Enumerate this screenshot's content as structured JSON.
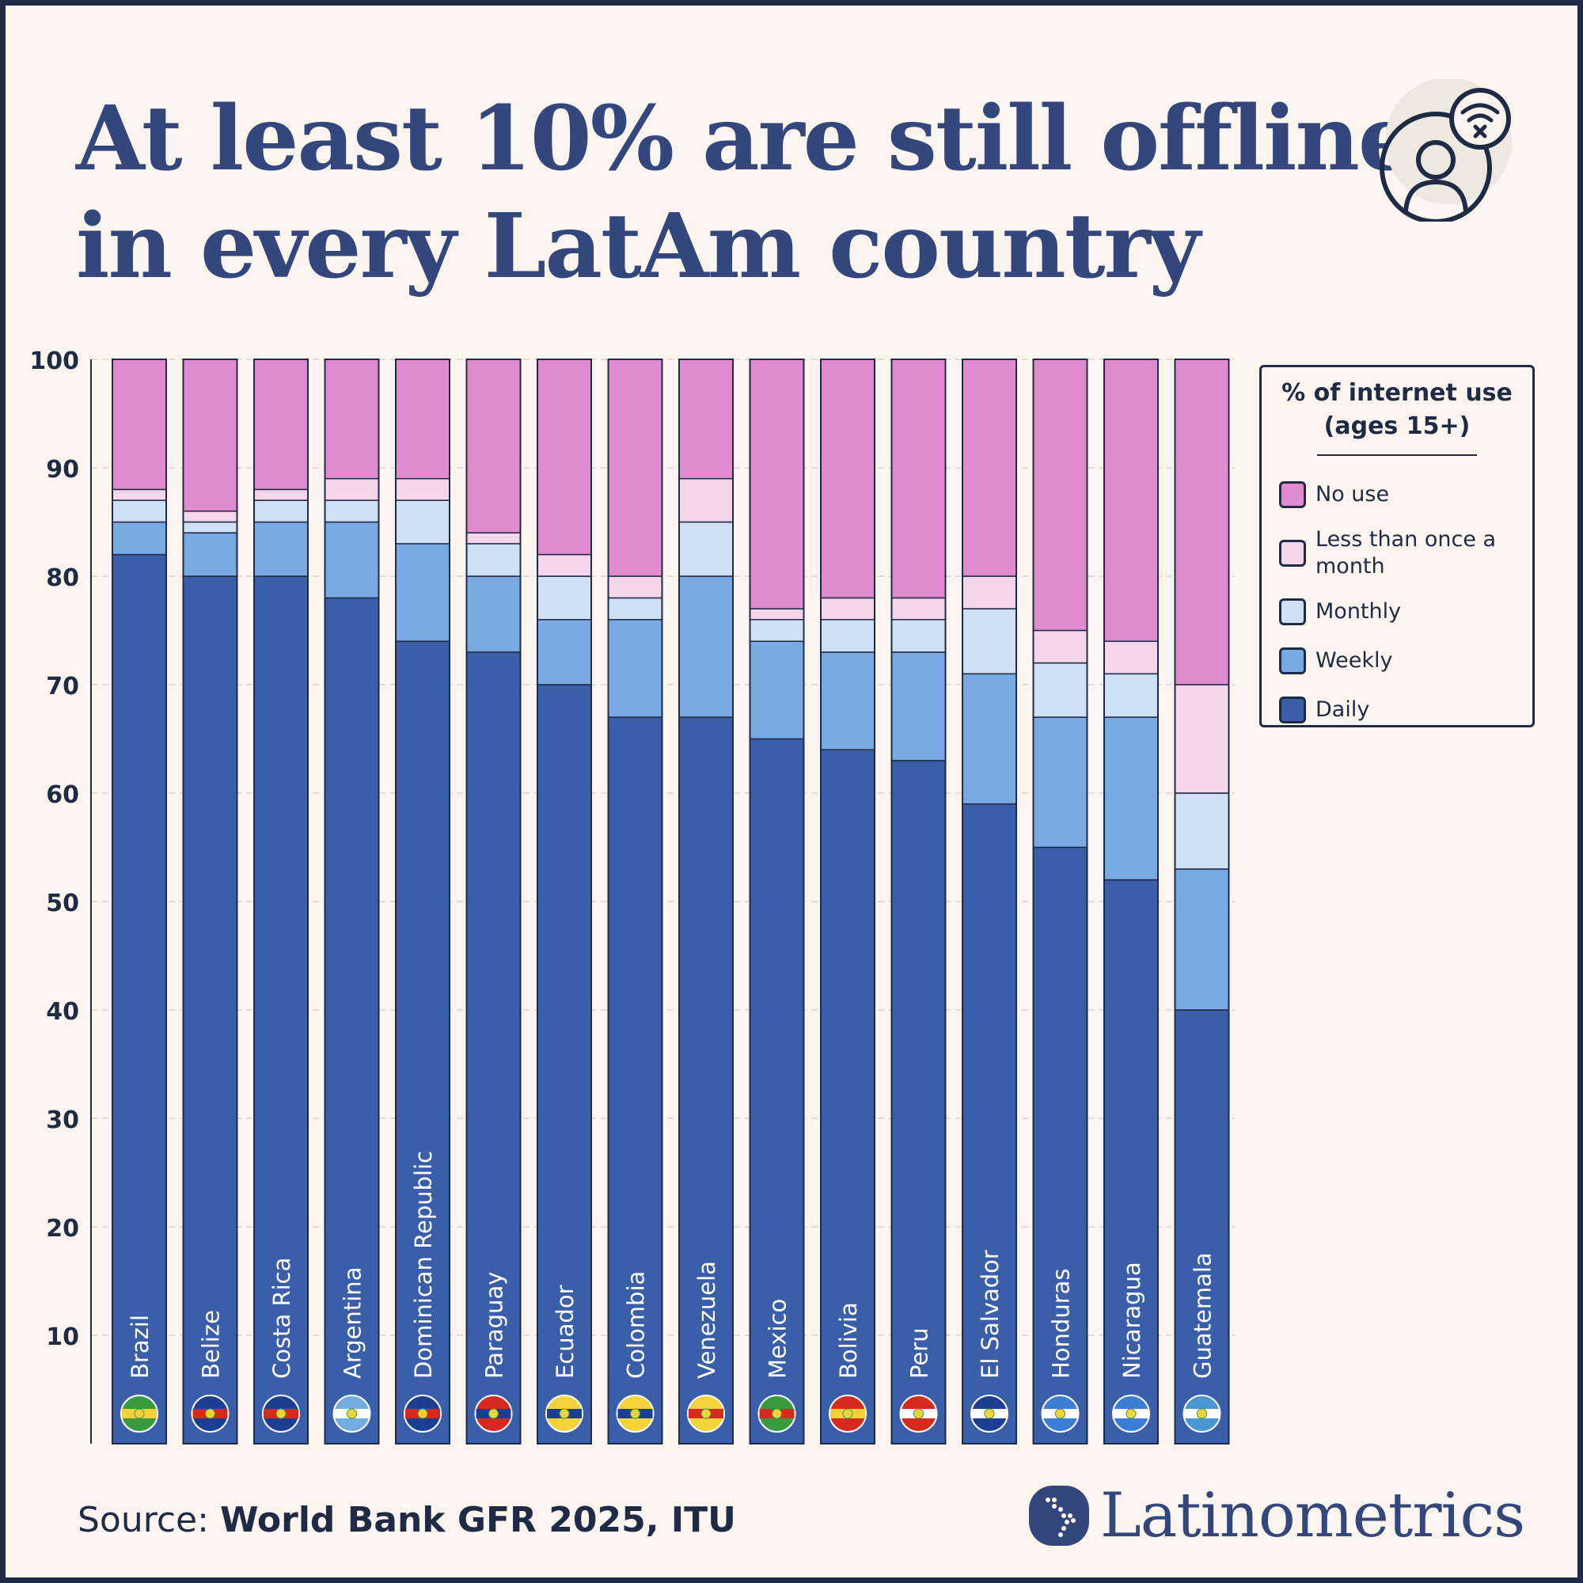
{
  "title": {
    "line1": "At least 10% are still offline",
    "line2": "in every LatAm country"
  },
  "icon": "offline-user-wifi-x-icon",
  "legend": {
    "title_line1": "% of internet use",
    "title_line2": "(ages 15+)",
    "items": [
      {
        "label": "No use",
        "color": "#e08bcf"
      },
      {
        "label": "Less than once a month",
        "color": "#f5d5ec"
      },
      {
        "label": "Monthly",
        "color": "#cfdff4"
      },
      {
        "label": "Weekly",
        "color": "#79a9e2"
      },
      {
        "label": "Daily",
        "color": "#3a5fa8"
      }
    ]
  },
  "source": {
    "prefix": "Source: ",
    "text": "World Bank GFR 2025, ITU"
  },
  "brand": "Latinometrics",
  "chart_data": {
    "type": "bar",
    "stacked": true,
    "title": "",
    "xlabel": "",
    "ylabel": "",
    "ylim": [
      0,
      100
    ],
    "yticks": [
      10,
      20,
      30,
      40,
      50,
      60,
      70,
      80,
      90,
      100
    ],
    "grid": true,
    "legend_position": "right",
    "categories": [
      "Brazil",
      "Belize",
      "Costa Rica",
      "Argentina",
      "Dominican Republic",
      "Paraguay",
      "Ecuador",
      "Colombia",
      "Venezuela",
      "Mexico",
      "Bolivia",
      "Peru",
      "El Salvador",
      "Honduras",
      "Nicaragua",
      "Guatemala"
    ],
    "series": [
      {
        "name": "Daily",
        "color": "#3a5fa8",
        "values": [
          82,
          80,
          80,
          78,
          74,
          73,
          70,
          67,
          67,
          65,
          64,
          63,
          59,
          55,
          52,
          40
        ]
      },
      {
        "name": "Weekly",
        "color": "#79a9e2",
        "values": [
          3,
          4,
          5,
          7,
          9,
          7,
          6,
          9,
          13,
          9,
          9,
          10,
          12,
          12,
          15,
          13
        ]
      },
      {
        "name": "Monthly",
        "color": "#cfdff4",
        "values": [
          2,
          1,
          2,
          2,
          4,
          3,
          4,
          2,
          5,
          2,
          3,
          3,
          6,
          5,
          4,
          7
        ]
      },
      {
        "name": "Less than once a month",
        "color": "#f5d5ec",
        "values": [
          1,
          1,
          1,
          2,
          2,
          1,
          2,
          2,
          4,
          1,
          2,
          2,
          3,
          3,
          3,
          10
        ]
      },
      {
        "name": "No use",
        "color": "#e08bcf",
        "values": [
          12,
          14,
          12,
          11,
          11,
          16,
          18,
          20,
          11,
          23,
          22,
          22,
          20,
          25,
          26,
          30
        ]
      }
    ]
  }
}
